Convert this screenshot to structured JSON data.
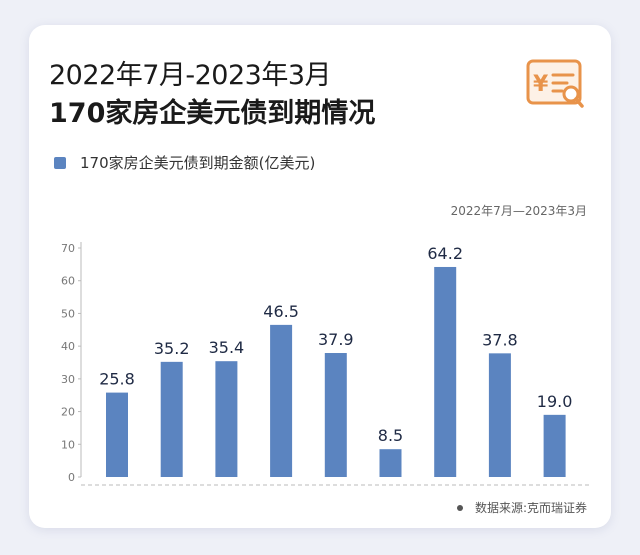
{
  "title_line1": "2022年7月-2023年3月",
  "title_line2": "170家房企美元债到期情况",
  "icon": "receipt-magnifier-icon",
  "accent_color": "#e8934a",
  "bar_color": "#5b84c0",
  "date_range_label": "2022年7月—2023年3月",
  "source_label": "数据来源:克而瑞证券",
  "chart_data": {
    "type": "bar",
    "categories": [
      "",
      "",
      "",
      "",
      "",
      "",
      "",
      "",
      ""
    ],
    "series": [
      {
        "name": "170家房企美元债到期金额(亿美元)",
        "values": [
          25.8,
          35.2,
          35.4,
          46.5,
          37.9,
          8.5,
          64.2,
          37.8,
          19.0
        ]
      }
    ],
    "value_labels": [
      "25.8",
      "35.2",
      "35.4",
      "46.5",
      "37.9",
      "8.5",
      "64.2",
      "37.8",
      "19.0"
    ],
    "ylim": [
      0,
      70
    ],
    "yticks": [
      0,
      10,
      20,
      30,
      40,
      50,
      60,
      70
    ],
    "grid": false,
    "legend_position": "top-left"
  }
}
